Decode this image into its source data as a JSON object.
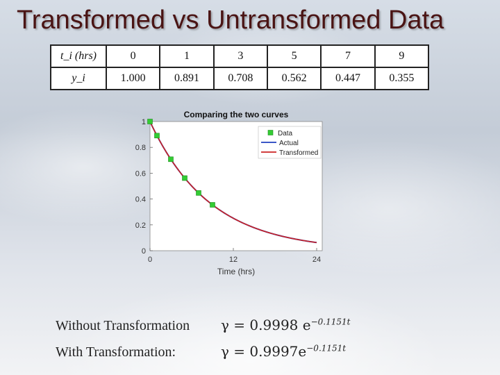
{
  "title": "Transformed vs Untransformed Data",
  "table": {
    "row1_label": "t_i (hrs)",
    "row2_label": "y_i",
    "t": [
      "0",
      "1",
      "3",
      "5",
      "7",
      "9"
    ],
    "y": [
      "1.000",
      "0.891",
      "0.708",
      "0.562",
      "0.447",
      "0.355"
    ]
  },
  "chart_data": {
    "type": "line",
    "title": "Comparing the two curves",
    "xlabel": "Time (hrs)",
    "ylabel": "",
    "xlim": [
      0,
      24
    ],
    "ylim": [
      0,
      1
    ],
    "xticks": [
      "0",
      "12",
      "24"
    ],
    "yticks": [
      "0",
      "0.2",
      "0.4",
      "0.6",
      "0.8",
      "1"
    ],
    "grid": false,
    "legend_position": "top-right",
    "points": {
      "name": "Data",
      "color": "#33cc33",
      "x": [
        0,
        1,
        3,
        5,
        7,
        9
      ],
      "y": [
        1.0,
        0.891,
        0.708,
        0.562,
        0.447,
        0.355
      ]
    },
    "series": [
      {
        "name": "Actual",
        "color": "#1f3fbf",
        "a": 0.9998,
        "k": 0.1151
      },
      {
        "name": "Transformed",
        "color": "#cc2222",
        "a": 0.9997,
        "k": 0.1151
      }
    ]
  },
  "equations": {
    "without_label": "Without Transformation",
    "without_coef": "γ = 0.9998 e",
    "without_exp": "−0.1151t",
    "with_label": "With Transformation:",
    "with_coef": "γ = 0.9997e",
    "with_exp": "−0.1151t"
  }
}
